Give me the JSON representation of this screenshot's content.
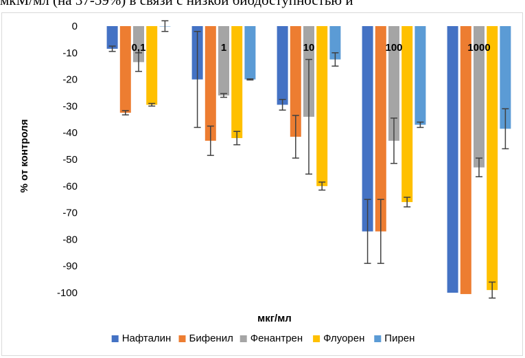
{
  "top_text": "мкМ/мл (на 37-59%) в связи с низкой биодоступностью и",
  "chart_data": {
    "type": "bar",
    "categories": [
      "0,1",
      "1",
      "10",
      "100",
      "1000"
    ],
    "ylabel": "% от контроля",
    "xlabel": "мкг/мл",
    "ylim": [
      -100,
      0
    ],
    "yticks": [
      0,
      -10,
      -20,
      -30,
      -40,
      -50,
      -60,
      -70,
      -80,
      -90,
      -100
    ],
    "grid": false,
    "legend_position": "bottom",
    "series": [
      {
        "name": "Нафталин",
        "color": "#4472c4",
        "values": [
          -8.5,
          -20,
          -29.5,
          -77,
          -100
        ],
        "errors": [
          1,
          18,
          2,
          12,
          0
        ]
      },
      {
        "name": "Бифенил",
        "color": "#ed7d31",
        "values": [
          -32.5,
          -43,
          -41.5,
          -77,
          -100.5
        ],
        "errors": [
          0.8,
          5.5,
          8,
          12,
          0
        ]
      },
      {
        "name": "Фенантрен",
        "color": "#a5a5a5",
        "values": [
          -13.5,
          -26,
          -34,
          -43,
          -53
        ],
        "errors": [
          3.5,
          0.7,
          21.5,
          8.5,
          3.5
        ]
      },
      {
        "name": "Флуорен",
        "color": "#ffc000",
        "values": [
          -29.5,
          -42,
          -60,
          -66,
          -99
        ],
        "errors": [
          0.5,
          2.5,
          1.5,
          1.8,
          3
        ]
      },
      {
        "name": "Пирен",
        "color": "#5b9bd5",
        "values": [
          0,
          -20,
          -12.5,
          -37,
          -38.5
        ],
        "errors": [
          2,
          0.2,
          2.5,
          1,
          7.5
        ]
      }
    ]
  }
}
